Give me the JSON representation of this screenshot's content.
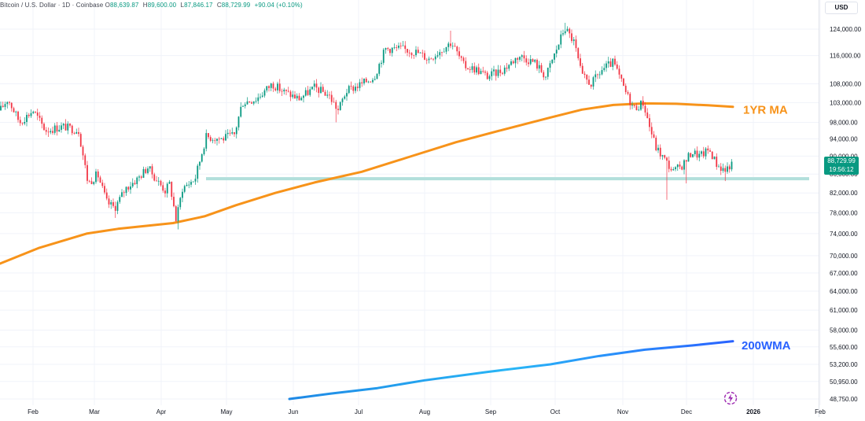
{
  "header": {
    "symbol": "Bitcoin / U.S. Dollar · 1D · Coinbase",
    "o_label": "O",
    "o_value": "88,639.87",
    "h_label": "H",
    "h_value": "89,600.00",
    "l_label": "L",
    "l_value": "87,846.17",
    "c_label": "C",
    "c_value": "88,729.99",
    "change": "+90.04 (+0.10%)"
  },
  "currency": "USD",
  "price_tag": {
    "price": "88,729.99",
    "countdown": "19:56:12"
  },
  "chart_data": {
    "type": "candlestick",
    "scale": "log",
    "y_ticks": [
      124000,
      116000,
      108000,
      103000,
      98000,
      94000,
      90000,
      86000,
      82000,
      78000,
      74000,
      70000,
      67000,
      64000,
      61000,
      58000,
      55600,
      53200,
      50950,
      48750
    ],
    "y_tick_labels": [
      "124,000.00",
      "116,000.00",
      "108,000.00",
      "103,000.00",
      "98,000.00",
      "94,000.00",
      "90,000.00",
      "86,000.00",
      "82,000.00",
      "78,000.00",
      "74,000.00",
      "70,000.00",
      "67,000.00",
      "64,000.00",
      "61,000.00",
      "58,000.00",
      "55,600.00",
      "53,200.00",
      "50,950.00",
      "48,750.00"
    ],
    "x_labels": [
      "Feb",
      "Mar",
      "Apr",
      "May",
      "Jun",
      "Jul",
      "Aug",
      "Sep",
      "Oct",
      "Nov",
      "Dec",
      "2026",
      "Feb"
    ],
    "colors": {
      "up": "#089981",
      "down": "#f23645",
      "ma": "#f7931a",
      "wma": "#2962ff",
      "support": "#b2dfdb",
      "grid": "#f0f3fa"
    },
    "annotations": [
      {
        "text": "1YR MA",
        "color": "#f7931a"
      },
      {
        "text": "200WMA",
        "color": "#2962ff"
      }
    ],
    "support_level": 85000,
    "series": [
      {
        "name": "BTCUSD",
        "type": "candlestick",
        "anchors": [
          {
            "x": 0,
            "y": 101000
          },
          {
            "x": 10,
            "y": 104000
          },
          {
            "x": 25,
            "y": 98000
          },
          {
            "x": 42,
            "y": 101000
          },
          {
            "x": 58,
            "y": 96000
          },
          {
            "x": 80,
            "y": 97000
          },
          {
            "x": 100,
            "y": 96000
          },
          {
            "x": 112,
            "y": 84000
          },
          {
            "x": 124,
            "y": 86000
          },
          {
            "x": 136,
            "y": 80000
          },
          {
            "x": 146,
            "y": 79000
          },
          {
            "x": 160,
            "y": 83000
          },
          {
            "x": 175,
            "y": 85000
          },
          {
            "x": 188,
            "y": 87500
          },
          {
            "x": 198,
            "y": 85000
          },
          {
            "x": 210,
            "y": 82500
          },
          {
            "x": 216,
            "y": 84000
          },
          {
            "x": 224,
            "y": 76500
          },
          {
            "x": 232,
            "y": 83000
          },
          {
            "x": 248,
            "y": 85000
          },
          {
            "x": 262,
            "y": 94500
          },
          {
            "x": 282,
            "y": 94000
          },
          {
            "x": 298,
            "y": 95000
          },
          {
            "x": 308,
            "y": 103000
          },
          {
            "x": 326,
            "y": 104000
          },
          {
            "x": 346,
            "y": 108000
          },
          {
            "x": 360,
            "y": 106000
          },
          {
            "x": 380,
            "y": 104000
          },
          {
            "x": 400,
            "y": 107000
          },
          {
            "x": 418,
            "y": 105000
          },
          {
            "x": 430,
            "y": 101000
          },
          {
            "x": 440,
            "y": 106000
          },
          {
            "x": 460,
            "y": 108000
          },
          {
            "x": 476,
            "y": 110000
          },
          {
            "x": 490,
            "y": 118000
          },
          {
            "x": 510,
            "y": 118000
          },
          {
            "x": 530,
            "y": 117000
          },
          {
            "x": 545,
            "y": 115000
          },
          {
            "x": 560,
            "y": 117500
          },
          {
            "x": 574,
            "y": 120000
          },
          {
            "x": 590,
            "y": 113000
          },
          {
            "x": 606,
            "y": 112000
          },
          {
            "x": 620,
            "y": 110000
          },
          {
            "x": 640,
            "y": 112000
          },
          {
            "x": 660,
            "y": 116000
          },
          {
            "x": 680,
            "y": 114000
          },
          {
            "x": 694,
            "y": 110000
          },
          {
            "x": 708,
            "y": 118000
          },
          {
            "x": 718,
            "y": 124500
          },
          {
            "x": 730,
            "y": 120000
          },
          {
            "x": 740,
            "y": 110000
          },
          {
            "x": 752,
            "y": 108000
          },
          {
            "x": 766,
            "y": 112000
          },
          {
            "x": 780,
            "y": 114000
          },
          {
            "x": 795,
            "y": 106000
          },
          {
            "x": 806,
            "y": 101500
          },
          {
            "x": 818,
            "y": 103000
          },
          {
            "x": 826,
            "y": 97000
          },
          {
            "x": 834,
            "y": 92000
          },
          {
            "x": 846,
            "y": 89000
          },
          {
            "x": 856,
            "y": 86500
          },
          {
            "x": 868,
            "y": 88000
          },
          {
            "x": 880,
            "y": 91000
          },
          {
            "x": 890,
            "y": 90000
          },
          {
            "x": 902,
            "y": 91500
          },
          {
            "x": 912,
            "y": 88000
          },
          {
            "x": 922,
            "y": 86800
          },
          {
            "x": 932,
            "y": 88730
          }
        ],
        "spikes": [
          {
            "x": 226,
            "low": 74800
          },
          {
            "x": 146,
            "low": 77000
          },
          {
            "x": 848,
            "low": 80600
          },
          {
            "x": 718,
            "high": 126000
          },
          {
            "x": 574,
            "high": 123500
          },
          {
            "x": 428,
            "low": 98000
          },
          {
            "x": 874,
            "low": 84000
          },
          {
            "x": 922,
            "low": 84500
          }
        ]
      },
      {
        "name": "1YR MA",
        "type": "line",
        "points": [
          {
            "x": 0,
            "y": 68600
          },
          {
            "x": 50,
            "y": 71400
          },
          {
            "x": 110,
            "y": 74000
          },
          {
            "x": 150,
            "y": 74900
          },
          {
            "x": 220,
            "y": 76000
          },
          {
            "x": 260,
            "y": 77300
          },
          {
            "x": 300,
            "y": 79500
          },
          {
            "x": 350,
            "y": 82000
          },
          {
            "x": 400,
            "y": 84200
          },
          {
            "x": 460,
            "y": 86500
          },
          {
            "x": 520,
            "y": 89800
          },
          {
            "x": 580,
            "y": 93200
          },
          {
            "x": 640,
            "y": 96200
          },
          {
            "x": 700,
            "y": 99200
          },
          {
            "x": 740,
            "y": 101200
          },
          {
            "x": 780,
            "y": 102400
          },
          {
            "x": 820,
            "y": 102800
          },
          {
            "x": 860,
            "y": 102700
          },
          {
            "x": 900,
            "y": 102300
          },
          {
            "x": 932,
            "y": 101900
          }
        ]
      },
      {
        "name": "200WMA",
        "type": "line",
        "points": [
          {
            "x": 368,
            "y": 48750
          },
          {
            "x": 420,
            "y": 49400
          },
          {
            "x": 480,
            "y": 50100
          },
          {
            "x": 540,
            "y": 51100
          },
          {
            "x": 620,
            "y": 52200
          },
          {
            "x": 700,
            "y": 53200
          },
          {
            "x": 760,
            "y": 54300
          },
          {
            "x": 820,
            "y": 55200
          },
          {
            "x": 880,
            "y": 55800
          },
          {
            "x": 932,
            "y": 56400
          }
        ]
      }
    ]
  }
}
